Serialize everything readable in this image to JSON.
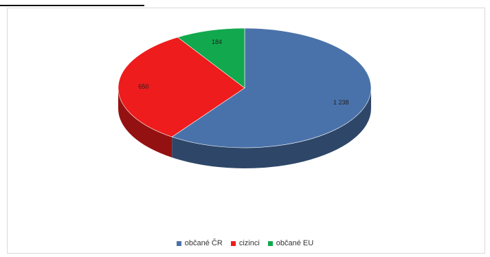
{
  "chart_data": {
    "type": "pie",
    "title": "",
    "categories": [
      "občané ČR",
      "cizinci",
      "občané EU"
    ],
    "values": [
      1238,
      650,
      184
    ],
    "data_labels": [
      "1 238",
      "650",
      "184"
    ],
    "colors": [
      "#4a72aa",
      "#ee1c1c",
      "#12a84e"
    ],
    "style": "3d",
    "legend_position": "bottom"
  }
}
